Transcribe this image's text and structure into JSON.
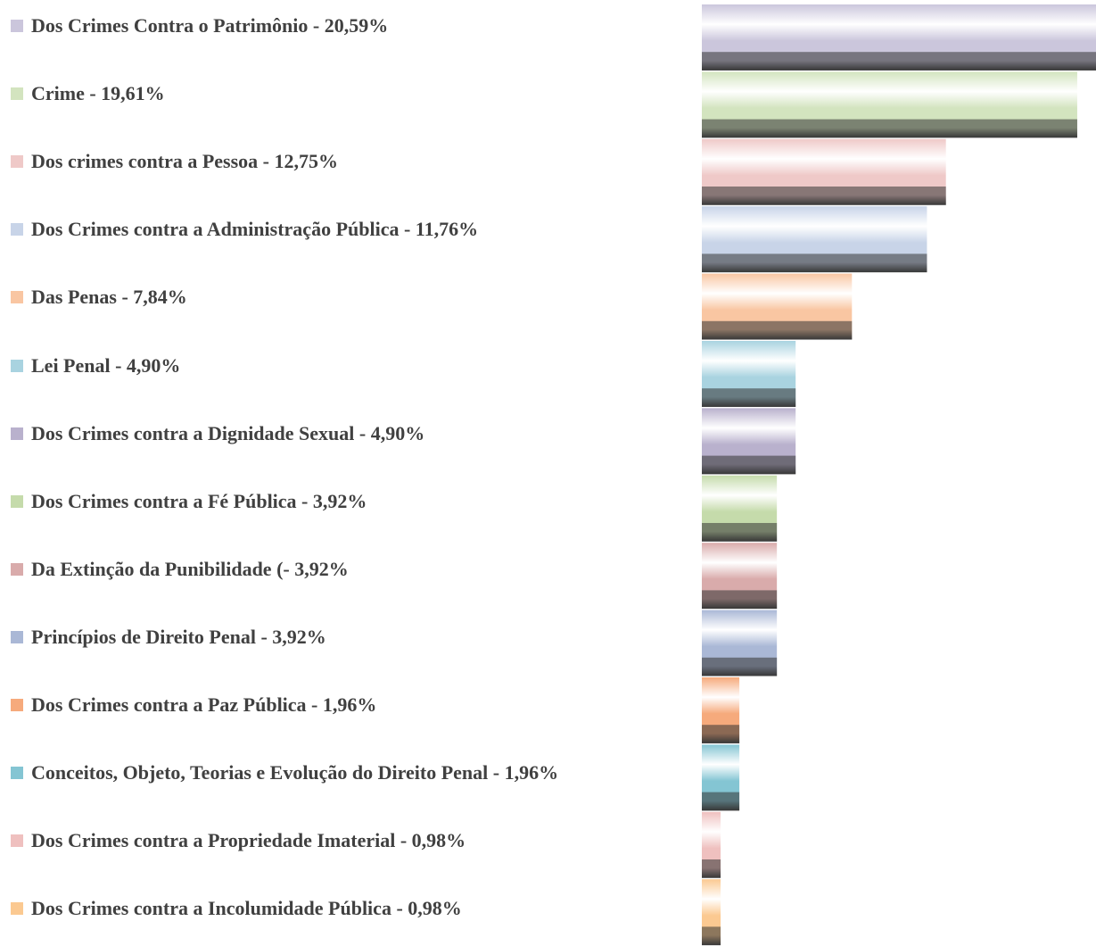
{
  "chart_data": {
    "type": "bar",
    "categories": [
      "Dos Crimes Contra o Patrimônio - 20,59%",
      "Crime - 19,61%",
      "Dos crimes contra a Pessoa - 12,75%",
      "Dos Crimes contra a Administração Pública - 11,76%",
      "Das Penas - 7,84%",
      "Lei Penal - 4,90%",
      "Dos Crimes contra a Dignidade Sexual - 4,90%",
      "Dos Crimes contra a Fé Pública - 3,92%",
      "Da Extinção da Punibilidade (- 3,92%",
      "Princípios de Direito Penal - 3,92%",
      "Dos Crimes contra a Paz Pública - 1,96%",
      "Conceitos, Objeto, Teorias e Evolução do Direito Penal - 1,96%",
      "Dos Crimes contra a Propriedade Imaterial - 0,98%",
      "Dos Crimes contra a Incolumidade Pública - 0,98%"
    ],
    "values": [
      20.59,
      19.61,
      12.75,
      11.76,
      7.84,
      4.9,
      4.9,
      3.92,
      3.92,
      3.92,
      1.96,
      1.96,
      0.98,
      0.98
    ],
    "colors": [
      "#cbc6dc",
      "#d3e4bf",
      "#efc9c8",
      "#c8d4e8",
      "#f9c6a2",
      "#a9d3e0",
      "#b9b1cd",
      "#c5dbab",
      "#d9abab",
      "#aab8d6",
      "#f6aa7c",
      "#84c5d3",
      "#efc0bf",
      "#fbc991"
    ]
  }
}
